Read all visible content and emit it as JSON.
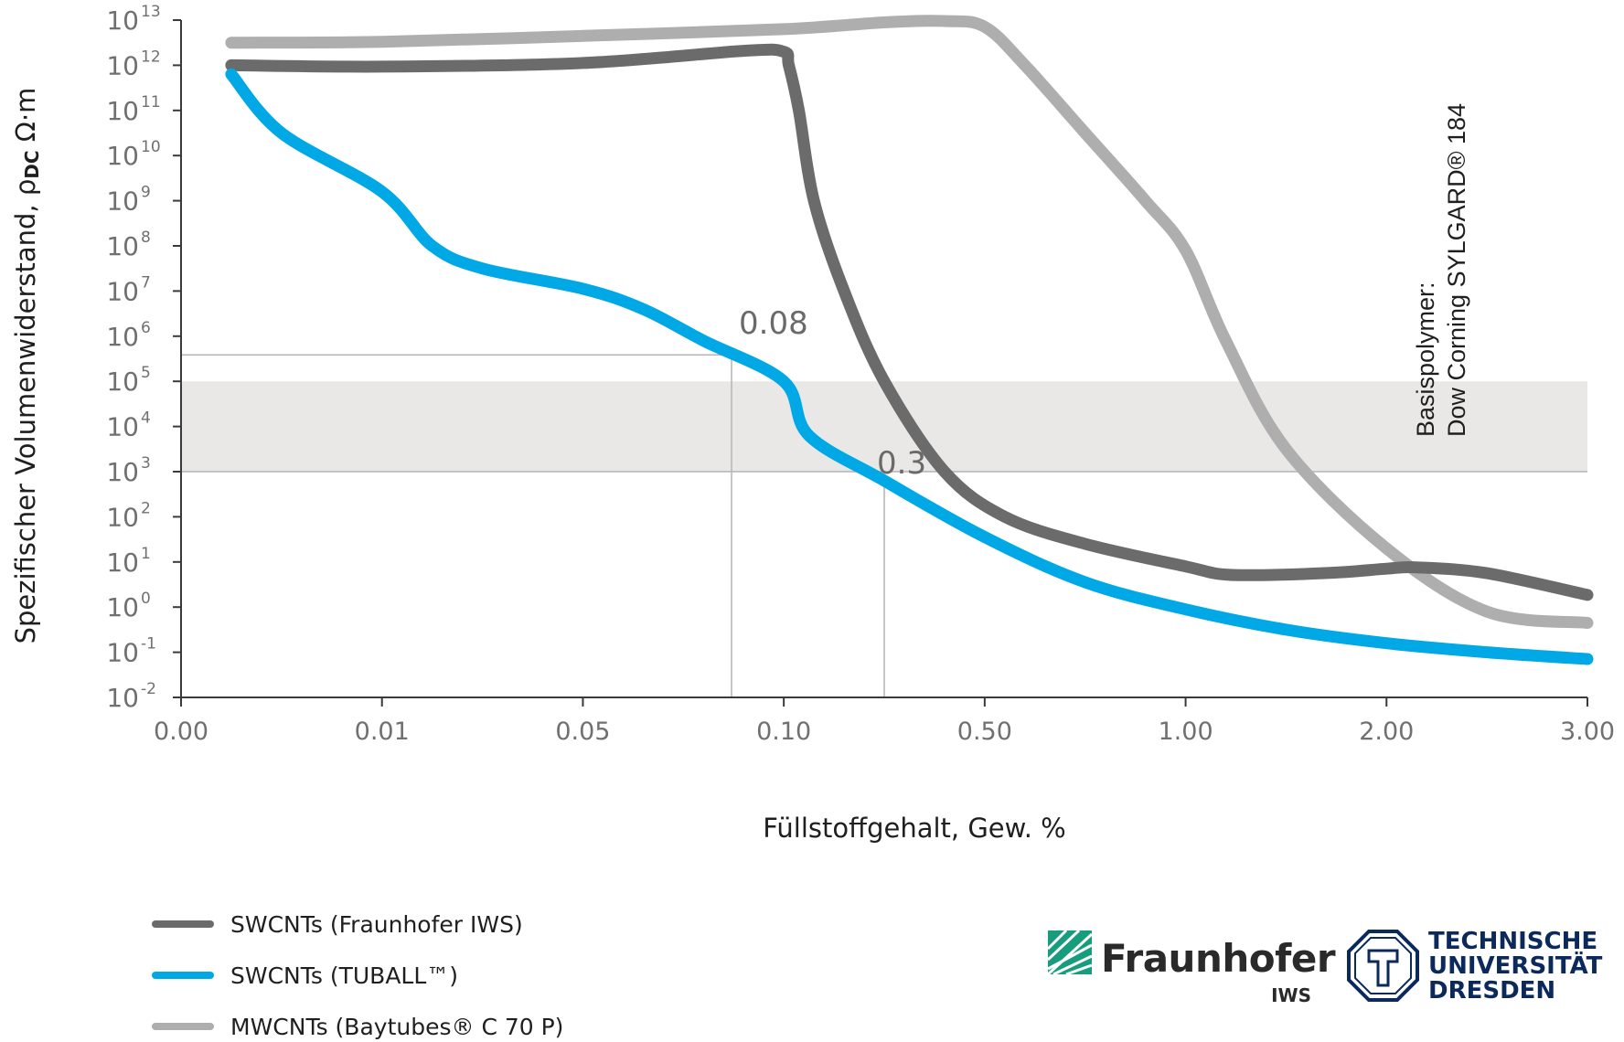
{
  "chart_data": {
    "type": "line",
    "xlabel": "Füllstoffgehalt, Gew. %",
    "ylabel": "Spezifischer Volumenwiderstand, ρDC Ω·m",
    "ylabel_parts": {
      "prefix": "Spezifischer Volumenwiderstand, ρ",
      "subscript": "DC",
      "suffix": " Ω·m"
    },
    "x_axis_scale": "categorical-nonlinear",
    "x_ticks": [
      "0.00",
      "0.01",
      "0.05",
      "0.10",
      "0.50",
      "1.00",
      "2.00",
      "3.00"
    ],
    "x_tick_values": [
      0.0,
      0.01,
      0.05,
      0.1,
      0.5,
      1.0,
      2.0,
      3.0
    ],
    "y_scale": "log",
    "y_tick_exponents": [
      13,
      12,
      11,
      10,
      9,
      8,
      7,
      6,
      5,
      4,
      3,
      2,
      1,
      0,
      -1,
      -2
    ],
    "y_tick_base": "10",
    "ylim_exponent": [
      -2,
      13
    ],
    "grid": false,
    "band": {
      "ymin_exponent": 3,
      "ymax_exponent": 5,
      "color": "#e9e8e7"
    },
    "series": [
      {
        "name": "SWCNTs (Fraunhofer IWS)",
        "color": "#6b6b6b",
        "points": [
          [
            0.0025,
            12.0
          ],
          [
            0.01,
            11.97
          ],
          [
            0.05,
            12.05
          ],
          [
            0.09,
            12.32
          ],
          [
            0.1,
            12.3
          ],
          [
            0.11,
            12.0
          ],
          [
            0.13,
            11.0
          ],
          [
            0.16,
            9.0
          ],
          [
            0.22,
            7.0
          ],
          [
            0.3,
            5.0
          ],
          [
            0.42,
            3.0
          ],
          [
            0.55,
            2.0
          ],
          [
            0.75,
            1.4
          ],
          [
            1.0,
            0.9
          ],
          [
            1.2,
            0.72
          ],
          [
            1.5,
            0.72
          ],
          [
            1.8,
            0.78
          ],
          [
            2.0,
            0.85
          ],
          [
            2.15,
            0.88
          ],
          [
            2.5,
            0.75
          ],
          [
            3.0,
            0.27
          ]
        ]
      },
      {
        "name": "SWCNTs (TUBALL™)",
        "color": "#00a8e6",
        "points": [
          [
            0.0025,
            11.8
          ],
          [
            0.005,
            10.5
          ],
          [
            0.01,
            9.2
          ],
          [
            0.02,
            8.0
          ],
          [
            0.03,
            7.5
          ],
          [
            0.05,
            7.05
          ],
          [
            0.065,
            6.6
          ],
          [
            0.08,
            5.9
          ],
          [
            0.1,
            5.0
          ],
          [
            0.15,
            3.8
          ],
          [
            0.3,
            2.8
          ],
          [
            0.5,
            1.55
          ],
          [
            0.75,
            0.55
          ],
          [
            1.0,
            -0.05
          ],
          [
            1.5,
            -0.5
          ],
          [
            2.0,
            -0.8
          ],
          [
            2.5,
            -1.0
          ],
          [
            3.0,
            -1.15
          ]
        ]
      },
      {
        "name": "MWCNTs (Baytubes® C 70 P)",
        "color": "#aeaeae",
        "points": [
          [
            0.0025,
            12.5
          ],
          [
            0.01,
            12.52
          ],
          [
            0.05,
            12.65
          ],
          [
            0.1,
            12.8
          ],
          [
            0.3,
            12.95
          ],
          [
            0.42,
            12.98
          ],
          [
            0.5,
            12.85
          ],
          [
            0.6,
            12.0
          ],
          [
            0.75,
            10.5
          ],
          [
            0.9,
            9.0
          ],
          [
            1.0,
            7.9
          ],
          [
            1.2,
            5.9
          ],
          [
            1.5,
            3.5
          ],
          [
            2.0,
            1.3
          ],
          [
            2.5,
            -0.1
          ],
          [
            3.0,
            -0.35
          ]
        ]
      }
    ],
    "annotations": [
      {
        "text": "0.08",
        "x": 0.088,
        "y_exponent": 5.85
      },
      {
        "text": "0.3",
        "x": 0.22,
        "y_exponent": 3.0
      }
    ],
    "side_note": {
      "line1": "Basispolymer:",
      "line2": "Dow Corning SYLGARD® 184"
    },
    "legend_position": "bottom-left"
  },
  "logos": {
    "fraunhofer": {
      "name": "Fraunhofer",
      "unit": "IWS",
      "color": "#179c7d"
    },
    "tu_dresden": {
      "lines": [
        "TECHNISCHE",
        "UNIVERSITÄT",
        "DRESDEN"
      ],
      "color": "#0b2a5b"
    }
  }
}
